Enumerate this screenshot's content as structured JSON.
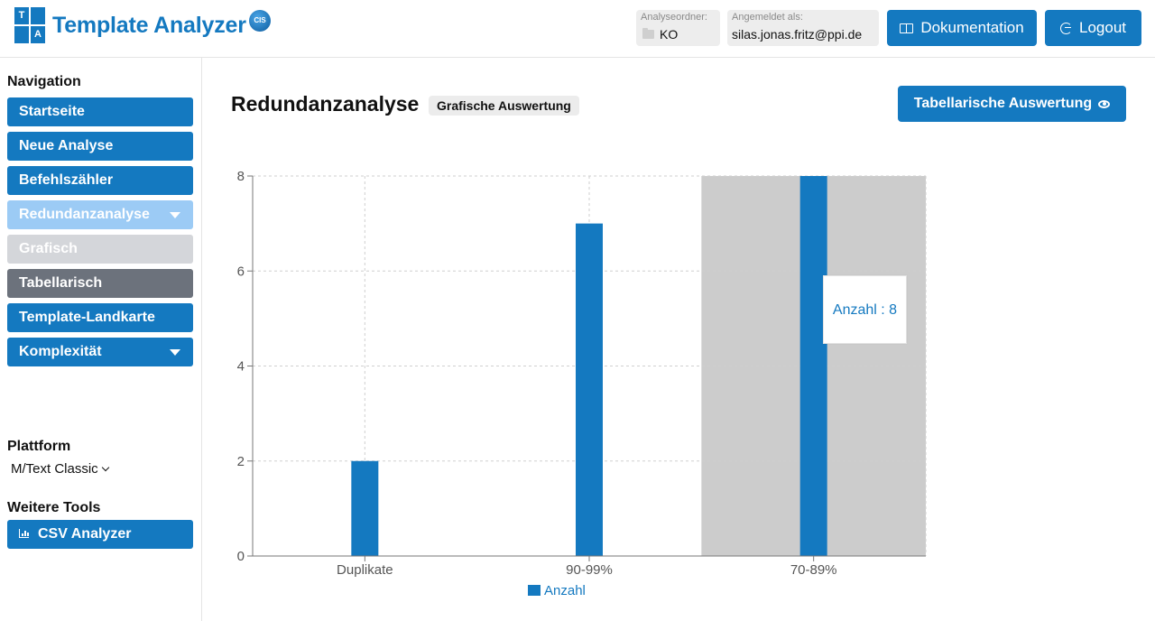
{
  "header": {
    "logo_letters": [
      "T",
      "A"
    ],
    "brand": "Template Analyzer",
    "cis_badge": "CIS",
    "folder_label": "Analyseordner:",
    "folder_value": "KO",
    "user_label": "Angemeldet als:",
    "user_value": "silas.jonas.fritz@ppi.de",
    "doc_button": "Dokumentation",
    "logout_button": "Logout",
    "icons": {
      "doc": "book-icon",
      "logout": "logout-icon",
      "folder": "folder-icon"
    }
  },
  "sidebar": {
    "nav_title": "Navigation",
    "items": [
      {
        "label": "Startseite",
        "style": "blue",
        "caret": false
      },
      {
        "label": "Neue Analyse",
        "style": "blue",
        "caret": false
      },
      {
        "label": "Befehlszähler",
        "style": "blue",
        "caret": false
      },
      {
        "label": "Redundanzanalyse",
        "style": "light",
        "caret": true
      },
      {
        "label": "Grafisch",
        "style": "grey-light",
        "caret": false
      },
      {
        "label": "Tabellarisch",
        "style": "grey-dark",
        "caret": false
      },
      {
        "label": "Template-Landkarte",
        "style": "blue",
        "caret": false
      },
      {
        "label": "Komplexität",
        "style": "blue",
        "caret": true
      }
    ],
    "platform_title": "Plattform",
    "platform_value": "M/Text Classic",
    "tools_title": "Weitere Tools",
    "csv_button": "CSV Analyzer"
  },
  "main": {
    "title": "Redundanzanalyse",
    "badge": "Grafische Auswertung",
    "table_button": "Tabellarische Auswertung"
  },
  "tooltip": {
    "text": "Anzahl : 8"
  },
  "colors": {
    "accent": "#1479c0",
    "highlight": "#cccccc"
  },
  "chart_data": {
    "type": "bar",
    "categories": [
      "Duplikate",
      "90-99%",
      "70-89%"
    ],
    "series": [
      {
        "name": "Anzahl",
        "values": [
          2,
          7,
          8
        ]
      }
    ],
    "yticks": [
      "0",
      "2",
      "4",
      "6",
      "8"
    ],
    "ylim": [
      0,
      8
    ],
    "grid": true,
    "legend": "bottom",
    "highlighted_category": "70-89%"
  }
}
